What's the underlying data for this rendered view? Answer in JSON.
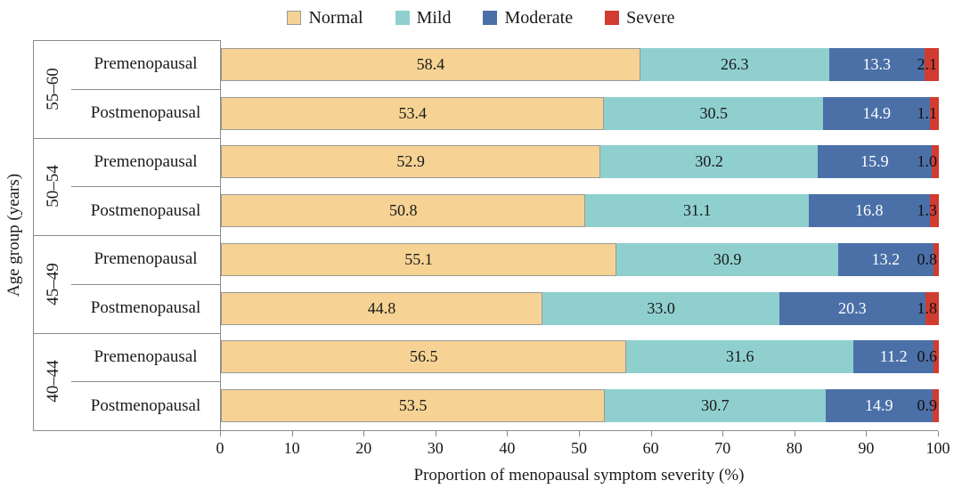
{
  "legend": {
    "items": [
      {
        "label": "Normal",
        "color": "#f6d394",
        "border": "#999999"
      },
      {
        "label": "Mild",
        "color": "#8fd0cf",
        "border": "#8fd0cf"
      },
      {
        "label": "Moderate",
        "color": "#4b70a8",
        "border": "#4b70a8"
      },
      {
        "label": "Severe",
        "color": "#d23b30",
        "border": "#d23b30"
      }
    ]
  },
  "chart_data": {
    "type": "bar",
    "orientation": "horizontal",
    "stacked": true,
    "xlabel": "Proportion of menopausal symptom severity (%)",
    "ylabel": "Age group (years)",
    "xlim": [
      0,
      100
    ],
    "xticks": [
      0,
      10,
      20,
      30,
      40,
      50,
      60,
      70,
      80,
      90,
      100
    ],
    "series_names": [
      "Normal",
      "Mild",
      "Moderate",
      "Severe"
    ],
    "colors": [
      "#f6d394",
      "#8fd0cf",
      "#4b70a8",
      "#d23b30"
    ],
    "groups": [
      {
        "age": "55–60",
        "rows": [
          {
            "label": "Premenopausal",
            "values": [
              58.4,
              26.3,
              13.3,
              2.1
            ]
          },
          {
            "label": "Postmenopausal",
            "values": [
              53.4,
              30.5,
              14.9,
              1.1
            ]
          }
        ]
      },
      {
        "age": "50–54",
        "rows": [
          {
            "label": "Premenopausal",
            "values": [
              52.9,
              30.2,
              15.9,
              1.0
            ]
          },
          {
            "label": "Postmenopausal",
            "values": [
              50.8,
              31.1,
              16.8,
              1.3
            ]
          }
        ]
      },
      {
        "age": "45–49",
        "rows": [
          {
            "label": "Premenopausal",
            "values": [
              55.1,
              30.9,
              13.2,
              0.8
            ]
          },
          {
            "label": "Postmenopausal",
            "values": [
              44.8,
              33.0,
              20.3,
              1.8
            ]
          }
        ]
      },
      {
        "age": "40–44",
        "rows": [
          {
            "label": "Premenopausal",
            "values": [
              56.5,
              31.6,
              11.2,
              0.6
            ]
          },
          {
            "label": "Postmenopausal",
            "values": [
              53.5,
              30.7,
              14.9,
              0.9
            ]
          }
        ]
      }
    ]
  }
}
